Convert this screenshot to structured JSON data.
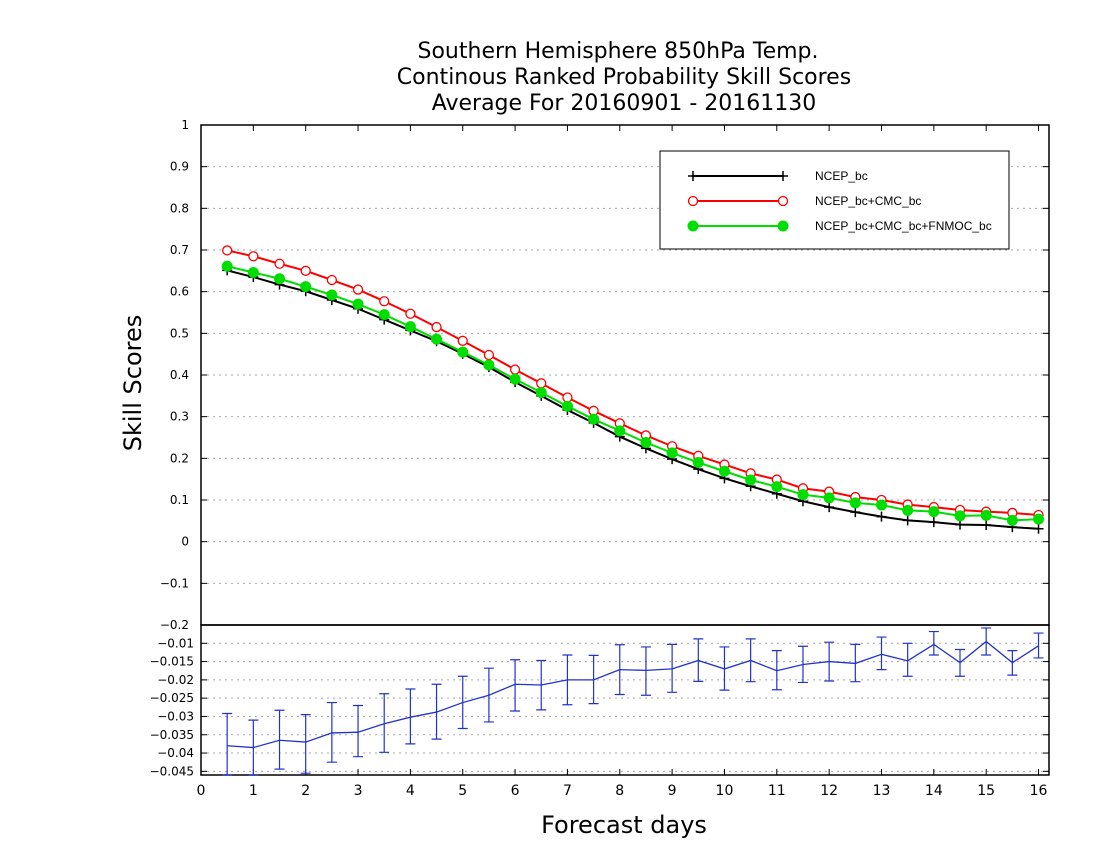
{
  "chart_data": [
    {
      "type": "line",
      "title_lines": [
        "Southern Hemisphere 850hPa Temp.",
        "Continous Ranked Probability Skill Scores",
        "Average For 20160901 - 20161130"
      ],
      "ylabel": "Skill Scores",
      "xlim": [
        0,
        16.2
      ],
      "ylim": [
        -0.2,
        1
      ],
      "x_ticks": [
        0,
        1,
        2,
        3,
        4,
        5,
        6,
        7,
        8,
        9,
        10,
        11,
        12,
        13,
        14,
        15,
        16
      ],
      "y_ticks": [
        -0.2,
        -0.1,
        0,
        0.1,
        0.2,
        0.3,
        0.4,
        0.5,
        0.6,
        0.7,
        0.8,
        0.9,
        1
      ],
      "grid": true,
      "legend_position": "top-right",
      "x": [
        0.5,
        1,
        1.5,
        2,
        2.5,
        3,
        3.5,
        4,
        4.5,
        5,
        5.5,
        6,
        6.5,
        7,
        7.5,
        8,
        8.5,
        9,
        9.5,
        10,
        10.5,
        11,
        11.5,
        12,
        12.5,
        13,
        13.5,
        14,
        14.5,
        15,
        15.5,
        16
      ],
      "series": [
        {
          "name": "NCEP_bc",
          "color": "#000000",
          "marker": "plus",
          "values": [
            0.651,
            0.635,
            0.617,
            0.601,
            0.58,
            0.559,
            0.533,
            0.507,
            0.481,
            0.451,
            0.419,
            0.383,
            0.35,
            0.316,
            0.285,
            0.252,
            0.224,
            0.198,
            0.174,
            0.152,
            0.133,
            0.115,
            0.097,
            0.083,
            0.071,
            0.06,
            0.051,
            0.047,
            0.041,
            0.04,
            0.035,
            0.031
          ]
        },
        {
          "name": "NCEP_bc+CMC_bc",
          "color": "#ff0000",
          "marker": "open-circle",
          "values": [
            0.699,
            0.685,
            0.667,
            0.65,
            0.628,
            0.605,
            0.577,
            0.547,
            0.515,
            0.482,
            0.448,
            0.413,
            0.38,
            0.346,
            0.314,
            0.284,
            0.255,
            0.229,
            0.206,
            0.185,
            0.164,
            0.149,
            0.128,
            0.12,
            0.107,
            0.1,
            0.089,
            0.083,
            0.076,
            0.072,
            0.069,
            0.064
          ]
        },
        {
          "name": "NCEP_bc+CMC_bc+FNMOC_bc",
          "color": "#00dd00",
          "marker": "filled-circle",
          "values": [
            0.661,
            0.646,
            0.631,
            0.612,
            0.592,
            0.57,
            0.545,
            0.516,
            0.486,
            0.455,
            0.424,
            0.39,
            0.358,
            0.325,
            0.294,
            0.266,
            0.238,
            0.213,
            0.19,
            0.169,
            0.148,
            0.132,
            0.113,
            0.105,
            0.093,
            0.088,
            0.075,
            0.072,
            0.062,
            0.063,
            0.051,
            0.054
          ]
        }
      ]
    },
    {
      "type": "line",
      "xlabel": "Forecast days",
      "xlim": [
        0,
        16.2
      ],
      "ylim": [
        -0.046,
        -0.005
      ],
      "y_ticks": [
        -0.045,
        -0.04,
        -0.035,
        -0.03,
        -0.025,
        -0.02,
        -0.015,
        -0.01
      ],
      "y_tick_labels": [
        "−0.045",
        "−0.04",
        "−0.035",
        "−0.03",
        "−0.025",
        "−0.02",
        "−0.015",
        "−0.01"
      ],
      "grid": true,
      "x": [
        0.5,
        1,
        1.5,
        2,
        2.5,
        3,
        3.5,
        4,
        4.5,
        5,
        5.5,
        6,
        6.5,
        7,
        7.5,
        8,
        8.5,
        9,
        9.5,
        10,
        10.5,
        11,
        11.5,
        12,
        12.5,
        13,
        13.5,
        14,
        14.5,
        15,
        15.5,
        16
      ],
      "series": [
        {
          "color": "#2233cc",
          "values": [
            -0.038,
            -0.0385,
            -0.0365,
            -0.037,
            -0.0345,
            -0.0343,
            -0.032,
            -0.0302,
            -0.0288,
            -0.0262,
            -0.0242,
            -0.0212,
            -0.0214,
            -0.02,
            -0.02,
            -0.0172,
            -0.0174,
            -0.017,
            -0.0147,
            -0.017,
            -0.0147,
            -0.0175,
            -0.0158,
            -0.015,
            -0.0155,
            -0.013,
            -0.0148,
            -0.0103,
            -0.0153,
            -0.0095,
            -0.0153,
            -0.0107
          ],
          "error_low": [
            -0.047,
            -0.0464,
            -0.0444,
            -0.0455,
            -0.0425,
            -0.041,
            -0.0398,
            -0.0375,
            -0.0362,
            -0.0333,
            -0.0315,
            -0.0285,
            -0.0282,
            -0.0268,
            -0.0265,
            -0.024,
            -0.0242,
            -0.0234,
            -0.0204,
            -0.0228,
            -0.0205,
            -0.0227,
            -0.0207,
            -0.0203,
            -0.0205,
            -0.0172,
            -0.019,
            -0.0132,
            -0.019,
            -0.0132,
            -0.0187,
            -0.014
          ],
          "error_high": [
            -0.0292,
            -0.031,
            -0.0283,
            -0.0295,
            -0.0262,
            -0.027,
            -0.0238,
            -0.0225,
            -0.0212,
            -0.019,
            -0.0168,
            -0.0145,
            -0.0147,
            -0.0132,
            -0.0133,
            -0.0104,
            -0.011,
            -0.0103,
            -0.0088,
            -0.011,
            -0.0088,
            -0.012,
            -0.0108,
            -0.0097,
            -0.0103,
            -0.0083,
            -0.01,
            -0.0068,
            -0.0117,
            -0.0058,
            -0.012,
            -0.0072
          ]
        }
      ]
    }
  ]
}
